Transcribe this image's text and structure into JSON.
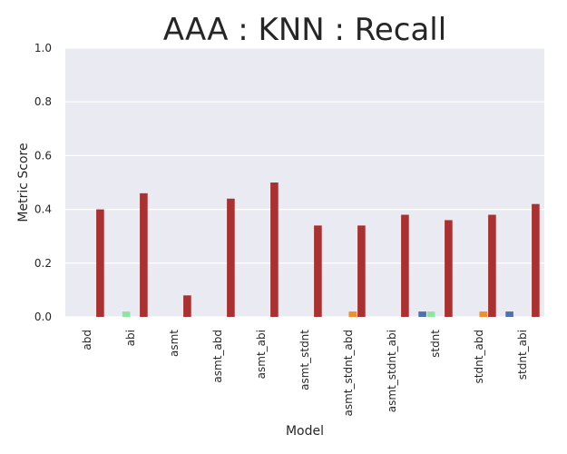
{
  "chart_data": {
    "type": "bar",
    "title": "AAA : KNN : Recall",
    "xlabel": "Model",
    "ylabel": "Metric Score",
    "ylim": [
      0,
      1
    ],
    "yticks": [
      "0.0",
      "0.2",
      "0.4",
      "0.6",
      "0.8",
      "1.0"
    ],
    "grid": true,
    "categories": [
      "abd",
      "abi",
      "asmt",
      "asmt_abd",
      "asmt_abi",
      "asmt_stdnt",
      "asmt_stdnt_abd",
      "asmt_stdnt_abi",
      "stdnt",
      "stdnt_abd",
      "stdnt_abi"
    ],
    "series": [
      {
        "color": "#4c72b0",
        "values": [
          0,
          0,
          0,
          0,
          0,
          0,
          0,
          0,
          0.02,
          0,
          0.02
        ]
      },
      {
        "color": "#8de5a1",
        "values": [
          0,
          0.02,
          0,
          0,
          0,
          0,
          0,
          0,
          0.02,
          0,
          0
        ]
      },
      {
        "color": "#f28e2b",
        "values": [
          0,
          0,
          0,
          0,
          0,
          0,
          0.02,
          0,
          0,
          0.02,
          0
        ]
      },
      {
        "color": "#a83232",
        "values": [
          0.4,
          0.46,
          0.08,
          0.44,
          0.5,
          0.34,
          0.34,
          0.38,
          0.36,
          0.38,
          0.42
        ]
      }
    ]
  }
}
